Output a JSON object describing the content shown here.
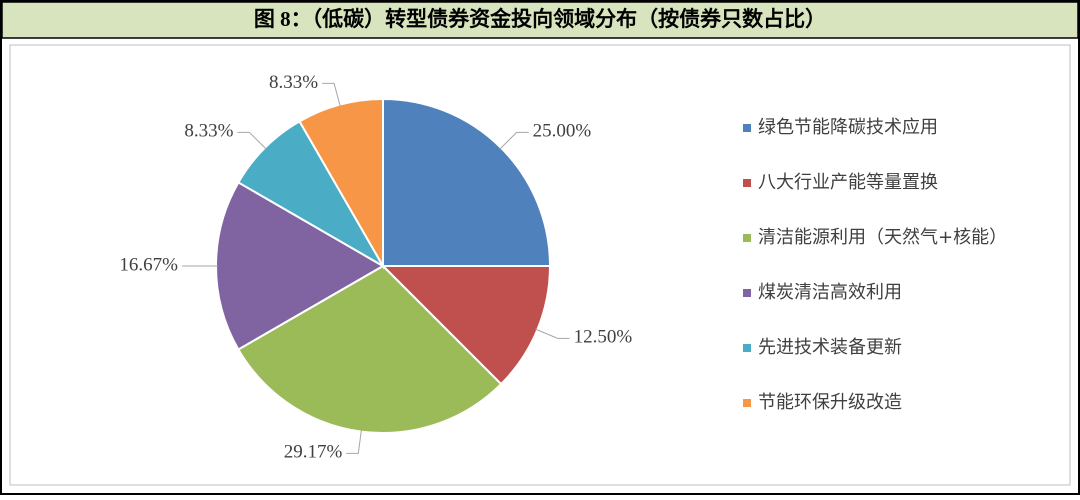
{
  "chart_data": {
    "type": "pie",
    "title": "图 8：（低碳）转型债券资金投向领域分布（按债券只数占比）",
    "categories": [
      "绿色节能降碳技术应用",
      "八大行业产能等量置换",
      "清洁能源利用（天然气+核能）",
      "煤炭清洁高效利用",
      "先进技术装备更新",
      "节能环保升级改造"
    ],
    "values": [
      25.0,
      12.5,
      29.17,
      16.67,
      8.33,
      8.33
    ],
    "value_labels": [
      "25.00%",
      "12.50%",
      "29.17%",
      "16.67%",
      "8.33%",
      "8.33%"
    ],
    "colors": [
      "#4f81bd",
      "#c0504d",
      "#9bbb59",
      "#8064a2",
      "#4bacc6",
      "#f79646"
    ],
    "legend": "right"
  }
}
